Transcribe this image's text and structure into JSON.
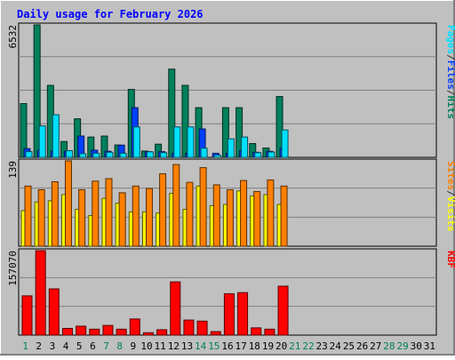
{
  "title": "Daily usage for February 2026",
  "colors": {
    "background": "#c0c0c0",
    "title": "#0000ff",
    "hits": "#00805c",
    "files": "#0040ff",
    "pages": "#00e0ff",
    "visits": "#ffff00",
    "sites": "#ff8000",
    "kbytes": "#ff0000",
    "weekend": "#00805c",
    "weekday": "#000000"
  },
  "chart_data": [
    {
      "type": "bar",
      "panel": "hits_files_pages",
      "max_label": "6532",
      "legend": [
        "Pages",
        "/",
        "Files",
        "/",
        "Hits"
      ],
      "ylim": [
        0,
        6532
      ],
      "categories": [
        "1",
        "2",
        "3",
        "4",
        "5",
        "6",
        "7",
        "8",
        "9",
        "10",
        "11",
        "12",
        "13",
        "14",
        "15",
        "16",
        "17",
        "18",
        "19",
        "20",
        "21",
        "22",
        "23",
        "24",
        "25",
        "26",
        "27",
        "28",
        "29",
        "30",
        "31"
      ],
      "series": [
        {
          "name": "Hits",
          "values": [
            2650,
            6532,
            3550,
            780,
            1900,
            1000,
            1050,
            610,
            3350,
            310,
            650,
            4350,
            3550,
            2450,
            0,
            2450,
            2450,
            680,
            460,
            3000,
            0,
            0,
            0,
            0,
            0,
            0,
            0,
            0,
            0,
            0,
            0
          ]
        },
        {
          "name": "Files",
          "values": [
            430,
            350,
            320,
            300,
            1050,
            350,
            300,
            600,
            2450,
            280,
            280,
            200,
            200,
            1400,
            200,
            200,
            330,
            250,
            300,
            450,
            0,
            0,
            0,
            0,
            0,
            0,
            0,
            0,
            0,
            0,
            0
          ]
        },
        {
          "name": "Pages",
          "values": [
            280,
            1550,
            2100,
            330,
            180,
            200,
            250,
            200,
            1500,
            270,
            230,
            1500,
            1500,
            450,
            110,
            910,
            1000,
            230,
            260,
            1350,
            0,
            0,
            0,
            0,
            0,
            0,
            0,
            0,
            0,
            0,
            0
          ]
        }
      ]
    },
    {
      "type": "bar",
      "panel": "visits_sites",
      "max_label": "139",
      "legend": [
        "Sites",
        "/",
        "Visits"
      ],
      "ylim": [
        0,
        139
      ],
      "categories": [
        "1",
        "2",
        "3",
        "4",
        "5",
        "6",
        "7",
        "8",
        "9",
        "10",
        "11",
        "12",
        "13",
        "14",
        "15",
        "16",
        "17",
        "18",
        "19",
        "20",
        "21",
        "22",
        "23",
        "24",
        "25",
        "26",
        "27",
        "28",
        "29",
        "30",
        "31"
      ],
      "series": [
        {
          "name": "Visits",
          "values": [
            58,
            72,
            74,
            84,
            60,
            50,
            78,
            70,
            56,
            56,
            54,
            86,
            60,
            98,
            66,
            68,
            90,
            82,
            84,
            68,
            0,
            0,
            0,
            0,
            0,
            0,
            0,
            0,
            0,
            0,
            0
          ]
        },
        {
          "name": "Sites",
          "values": [
            98,
            92,
            105,
            139,
            92,
            106,
            110,
            87,
            98,
            94,
            118,
            133,
            104,
            128,
            100,
            92,
            107,
            89,
            108,
            98,
            0,
            0,
            0,
            0,
            0,
            0,
            0,
            0,
            0,
            0,
            0
          ]
        }
      ]
    },
    {
      "type": "bar",
      "panel": "kbytes",
      "max_label": "157070",
      "legend": [
        "KB",
        "F"
      ],
      "ylim": [
        0,
        157070
      ],
      "categories": [
        "1",
        "2",
        "3",
        "4",
        "5",
        "6",
        "7",
        "8",
        "9",
        "10",
        "11",
        "12",
        "13",
        "14",
        "15",
        "16",
        "17",
        "18",
        "19",
        "20",
        "21",
        "22",
        "23",
        "24",
        "25",
        "26",
        "27",
        "28",
        "29",
        "30",
        "31"
      ],
      "series": [
        {
          "name": "KBytes",
          "values": [
            73000,
            157070,
            86000,
            12500,
            16600,
            11000,
            18000,
            11000,
            30000,
            4500,
            10000,
            99000,
            28000,
            26000,
            6500,
            77000,
            79000,
            13500,
            11000,
            91000,
            0,
            0,
            0,
            0,
            0,
            0,
            0,
            0,
            0,
            0,
            0
          ]
        }
      ]
    }
  ],
  "x_axis": {
    "labels": [
      "1",
      "2",
      "3",
      "4",
      "5",
      "6",
      "7",
      "8",
      "9",
      "10",
      "11",
      "12",
      "13",
      "14",
      "15",
      "16",
      "17",
      "18",
      "19",
      "20",
      "21",
      "22",
      "23",
      "24",
      "25",
      "26",
      "27",
      "28",
      "29",
      "30",
      "31"
    ],
    "weekend": [
      1,
      7,
      8,
      14,
      15,
      21,
      22,
      28,
      29
    ]
  }
}
